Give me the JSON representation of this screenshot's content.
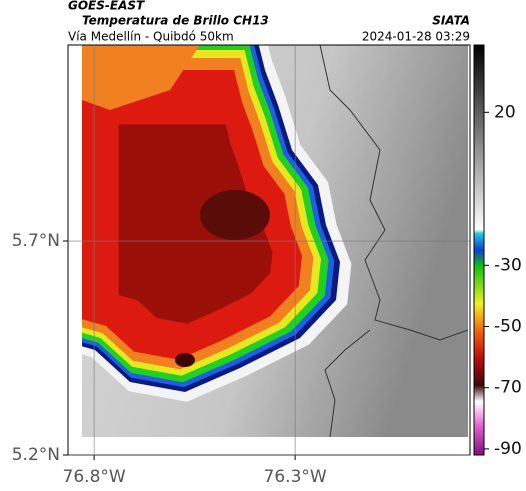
{
  "header": {
    "title": "GOES-EAST",
    "subtitle": "Temperatura de Brillo CH13",
    "source": "SIATA",
    "route": "Vía Medellín - Quibdó 50km",
    "timestamp": "2024-01-28 03:29"
  },
  "map": {
    "xlim": [
      -76.865,
      -75.865
    ],
    "ylim": [
      5.2,
      6.158
    ],
    "xticks": [
      {
        "value": -76.8,
        "label": "76.8°W"
      },
      {
        "value": -76.3,
        "label": "76.3°W"
      }
    ],
    "yticks": [
      {
        "value": 5.7,
        "label": "5.7°N"
      },
      {
        "value": 5.2,
        "label": "5.2°N"
      }
    ]
  },
  "colorbar": {
    "lim": [
      -92,
      42
    ],
    "ticks": [
      20,
      -30,
      -50,
      -70,
      -90
    ]
  }
}
